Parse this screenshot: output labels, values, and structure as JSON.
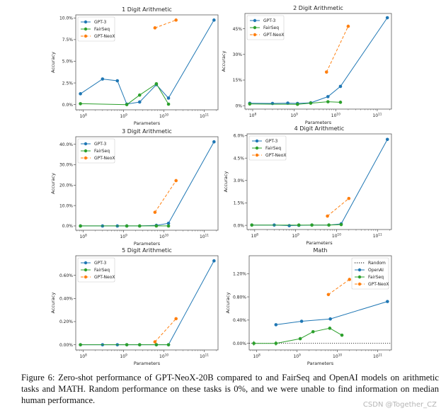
{
  "colors": {
    "gpt3": "#1f77b4",
    "fairseq": "#2ca02c",
    "neox": "#ff7f0e",
    "random": "#000000"
  },
  "chart_data": [
    {
      "type": "line",
      "title": "1 Digit Arithmetic",
      "xlabel": "Parameters",
      "ylabel": "Accuracy",
      "xscale": "log",
      "xlim": [
        65000000.0,
        220000000000.0
      ],
      "ylim": [
        -0.6,
        10.35
      ],
      "xticks": [
        100000000.0,
        1000000000.0,
        10000000000.0,
        100000000000.0
      ],
      "xtick_labels": [
        "10^8",
        "10^9",
        "10^10",
        "10^11"
      ],
      "yticks": [
        0,
        2.5,
        5,
        7.5,
        10
      ],
      "ytick_labels": [
        "0.0%",
        "2.5%",
        "5.0%",
        "7.5%",
        "10.0%"
      ],
      "legend": "top-left",
      "grid": false,
      "series": [
        {
          "name": "GPT-3",
          "color_key": "gpt3",
          "style": "solid",
          "x": [
            85000000.0,
            300000000.0,
            700000000.0,
            1200000000.0,
            2500000000.0,
            6500000000.0,
            13000000000.0,
            175000000000.0
          ],
          "y": [
            1.25,
            2.95,
            2.75,
            0.05,
            0.3,
            2.3,
            0.75,
            9.75
          ]
        },
        {
          "name": "FairSeq",
          "color_key": "fairseq",
          "style": "solid",
          "x": [
            85000000.0,
            1200000000.0,
            2500000000.0,
            6500000000.0,
            13000000000.0
          ],
          "y": [
            0.1,
            0.0,
            1.1,
            2.4,
            0.05
          ]
        },
        {
          "name": "GPT-NeoX",
          "color_key": "neox",
          "style": "dashed",
          "x": [
            6000000000.0,
            20000000000.0
          ],
          "y": [
            8.85,
            9.75
          ]
        }
      ]
    },
    {
      "type": "line",
      "title": "2 Digit Arithmetic",
      "xlabel": "Parameters",
      "ylabel": "Accuracy",
      "xscale": "log",
      "xlim": [
        65000000.0,
        220000000000.0
      ],
      "ylim": [
        -2,
        54
      ],
      "xticks": [
        100000000.0,
        1000000000.0,
        10000000000.0,
        100000000000.0
      ],
      "xtick_labels": [
        "10^8",
        "10^9",
        "10^10",
        "10^11"
      ],
      "yticks": [
        0,
        15,
        30,
        45
      ],
      "ytick_labels": [
        "0%",
        "15%",
        "30%",
        "45%"
      ],
      "legend": "top-left",
      "grid": false,
      "series": [
        {
          "name": "GPT-3",
          "color_key": "gpt3",
          "style": "solid",
          "x": [
            85000000.0,
            300000000.0,
            700000000.0,
            1200000000.0,
            2500000000.0,
            6500000000.0,
            13000000000.0,
            175000000000.0
          ],
          "y": [
            1.4,
            1.3,
            1.5,
            1.3,
            1.7,
            5.3,
            11.3,
            51.5
          ]
        },
        {
          "name": "FairSeq",
          "color_key": "fairseq",
          "style": "solid",
          "x": [
            85000000.0,
            1200000000.0,
            2500000000.0,
            6500000000.0,
            13000000000.0
          ],
          "y": [
            1.0,
            0.8,
            1.5,
            2.3,
            2.0
          ]
        },
        {
          "name": "GPT-NeoX",
          "color_key": "neox",
          "style": "dashed",
          "x": [
            6000000000.0,
            20000000000.0
          ],
          "y": [
            19.7,
            46.5
          ]
        }
      ]
    },
    {
      "type": "line",
      "title": "3 Digit Arithmetic",
      "xlabel": "Parameters",
      "ylabel": "Accuracy",
      "xscale": "log",
      "xlim": [
        65000000.0,
        220000000000.0
      ],
      "ylim": [
        -2.1,
        43.7
      ],
      "xticks": [
        100000000.0,
        1000000000.0,
        10000000000.0,
        100000000000.0
      ],
      "xtick_labels": [
        "10^8",
        "10^9",
        "10^10",
        "10^11"
      ],
      "yticks": [
        0,
        10,
        20,
        30,
        40
      ],
      "ytick_labels": [
        "0.0%",
        "10.0%",
        "20.0%",
        "30.0%",
        "40.0%"
      ],
      "legend": "top-left",
      "grid": false,
      "series": [
        {
          "name": "GPT-3",
          "color_key": "gpt3",
          "style": "solid",
          "x": [
            85000000.0,
            300000000.0,
            700000000.0,
            1200000000.0,
            2500000000.0,
            6500000000.0,
            13000000000.0,
            175000000000.0
          ],
          "y": [
            0,
            0,
            0,
            0,
            0,
            0.3,
            1.3,
            41.2
          ]
        },
        {
          "name": "FairSeq",
          "color_key": "fairseq",
          "style": "solid",
          "x": [
            85000000.0,
            1200000000.0,
            2500000000.0,
            6500000000.0,
            13000000000.0
          ],
          "y": [
            0,
            0,
            0,
            0,
            0
          ]
        },
        {
          "name": "GPT-NeoX",
          "color_key": "neox",
          "style": "dashed",
          "x": [
            6000000000.0,
            20000000000.0
          ],
          "y": [
            6.7,
            22.2
          ]
        }
      ]
    },
    {
      "type": "line",
      "title": "4 Digit Arithmetic",
      "xlabel": "Parameters",
      "ylabel": "Accuracy",
      "xscale": "log",
      "xlim": [
        65000000.0,
        220000000000.0
      ],
      "ylim": [
        -0.28,
        6.12
      ],
      "xticks": [
        100000000.0,
        1000000000.0,
        10000000000.0,
        100000000000.0
      ],
      "xtick_labels": [
        "10^8",
        "10^9",
        "10^10",
        "10^11"
      ],
      "yticks": [
        0,
        1.5,
        3,
        4.5,
        6
      ],
      "ytick_labels": [
        "0.0%",
        "1.5%",
        "3.0%",
        "4.5%",
        "6.0%"
      ],
      "legend": "top-left",
      "grid": false,
      "series": [
        {
          "name": "GPT-3",
          "color_key": "gpt3",
          "style": "solid",
          "x": [
            85000000.0,
            300000000.0,
            700000000.0,
            1200000000.0,
            2500000000.0,
            6500000000.0,
            13000000000.0,
            175000000000.0
          ],
          "y": [
            0.02,
            0.02,
            -0.02,
            0.0,
            0.02,
            0.02,
            0.1,
            5.75
          ]
        },
        {
          "name": "FairSeq",
          "color_key": "fairseq",
          "style": "solid",
          "x": [
            85000000.0,
            1200000000.0,
            2500000000.0,
            6500000000.0,
            13000000000.0
          ],
          "y": [
            0.02,
            0.02,
            0.02,
            0.02,
            0.05
          ]
        },
        {
          "name": "GPT-NeoX",
          "color_key": "neox",
          "style": "dashed",
          "x": [
            6000000000.0,
            20000000000.0
          ],
          "y": [
            0.62,
            1.8
          ]
        }
      ]
    },
    {
      "type": "line",
      "title": "5 Digit Arithmetic",
      "xlabel": "Parameters",
      "ylabel": "Accuracy",
      "xscale": "log",
      "xlim": [
        65000000.0,
        220000000000.0
      ],
      "ylim": [
        -0.045,
        0.769
      ],
      "xticks": [
        100000000.0,
        1000000000.0,
        10000000000.0,
        100000000000.0
      ],
      "xtick_labels": [
        "10^8",
        "10^9",
        "10^10",
        "10^11"
      ],
      "yticks": [
        0,
        0.2,
        0.4,
        0.6
      ],
      "ytick_labels": [
        "0.00%",
        "0.20%",
        "0.40%",
        "0.60%"
      ],
      "legend": "top-left",
      "grid": false,
      "series": [
        {
          "name": "GPT-3",
          "color_key": "gpt3",
          "style": "solid",
          "x": [
            85000000.0,
            300000000.0,
            700000000.0,
            1200000000.0,
            2500000000.0,
            6500000000.0,
            13000000000.0,
            175000000000.0
          ],
          "y": [
            0,
            0,
            0,
            0,
            0,
            0,
            0,
            0.725
          ]
        },
        {
          "name": "FairSeq",
          "color_key": "fairseq",
          "style": "solid",
          "x": [
            85000000.0,
            1200000000.0,
            2500000000.0,
            6500000000.0,
            13000000000.0
          ],
          "y": [
            0,
            0,
            0,
            0,
            0
          ]
        },
        {
          "name": "GPT-NeoX",
          "color_key": "neox",
          "style": "dashed",
          "x": [
            6000000000.0,
            20000000000.0
          ],
          "y": [
            0.025,
            0.225
          ]
        }
      ]
    },
    {
      "type": "line",
      "title": "Math",
      "xlabel": "Parameters",
      "ylabel": "Accuracy",
      "xscale": "log",
      "xlim": [
        65000000.0,
        220000000000.0
      ],
      "ylim": [
        -0.114,
        1.508
      ],
      "xticks": [
        100000000.0,
        1000000000.0,
        10000000000.0,
        100000000000.0
      ],
      "xtick_labels": [
        "10^8",
        "10^9",
        "10^10",
        "10^11"
      ],
      "yticks": [
        0,
        0.4,
        0.8,
        1.2
      ],
      "ytick_labels": [
        "0.00%",
        "0.40%",
        "0.80%",
        "1.20%"
      ],
      "legend": "top-right",
      "grid": false,
      "series": [
        {
          "name": "Random",
          "color_key": "random",
          "style": "dotted",
          "hline": 0
        },
        {
          "name": "OpenAI",
          "color_key": "gpt3",
          "style": "solid",
          "x": [
            300000000.0,
            1300000000.0,
            6700000000.0,
            175000000000.0
          ],
          "y": [
            0.32,
            0.38,
            0.42,
            0.72
          ],
          "yerr": [
            0.01,
            0.01,
            0.01,
            0.01
          ]
        },
        {
          "name": "FairSeq",
          "color_key": "fairseq",
          "style": "solid",
          "x": [
            85000000.0,
            300000000.0,
            1200000000.0,
            2500000000.0,
            6500000000.0,
            13000000000.0
          ],
          "y": [
            0,
            0,
            0.08,
            0.2,
            0.26,
            0.14
          ],
          "yerr": [
            0.04,
            0.04,
            0.01,
            0.01,
            0.01,
            0.01
          ]
        },
        {
          "name": "GPT-NeoX",
          "color_key": "neox",
          "style": "dashed",
          "x": [
            6000000000.0,
            20000000000.0
          ],
          "y": [
            0.84,
            1.1
          ],
          "yerr": [
            0.01,
            0.01
          ]
        }
      ]
    }
  ],
  "caption": "Figure 6: Zero-shot performance of GPT-NeoX-20B compared to and FairSeq and OpenAI models on arithmetic tasks and MATH. Random performance on these tasks is 0%, and we were unable to find information on median human performance.",
  "watermark": "CSDN @Together_CZ"
}
